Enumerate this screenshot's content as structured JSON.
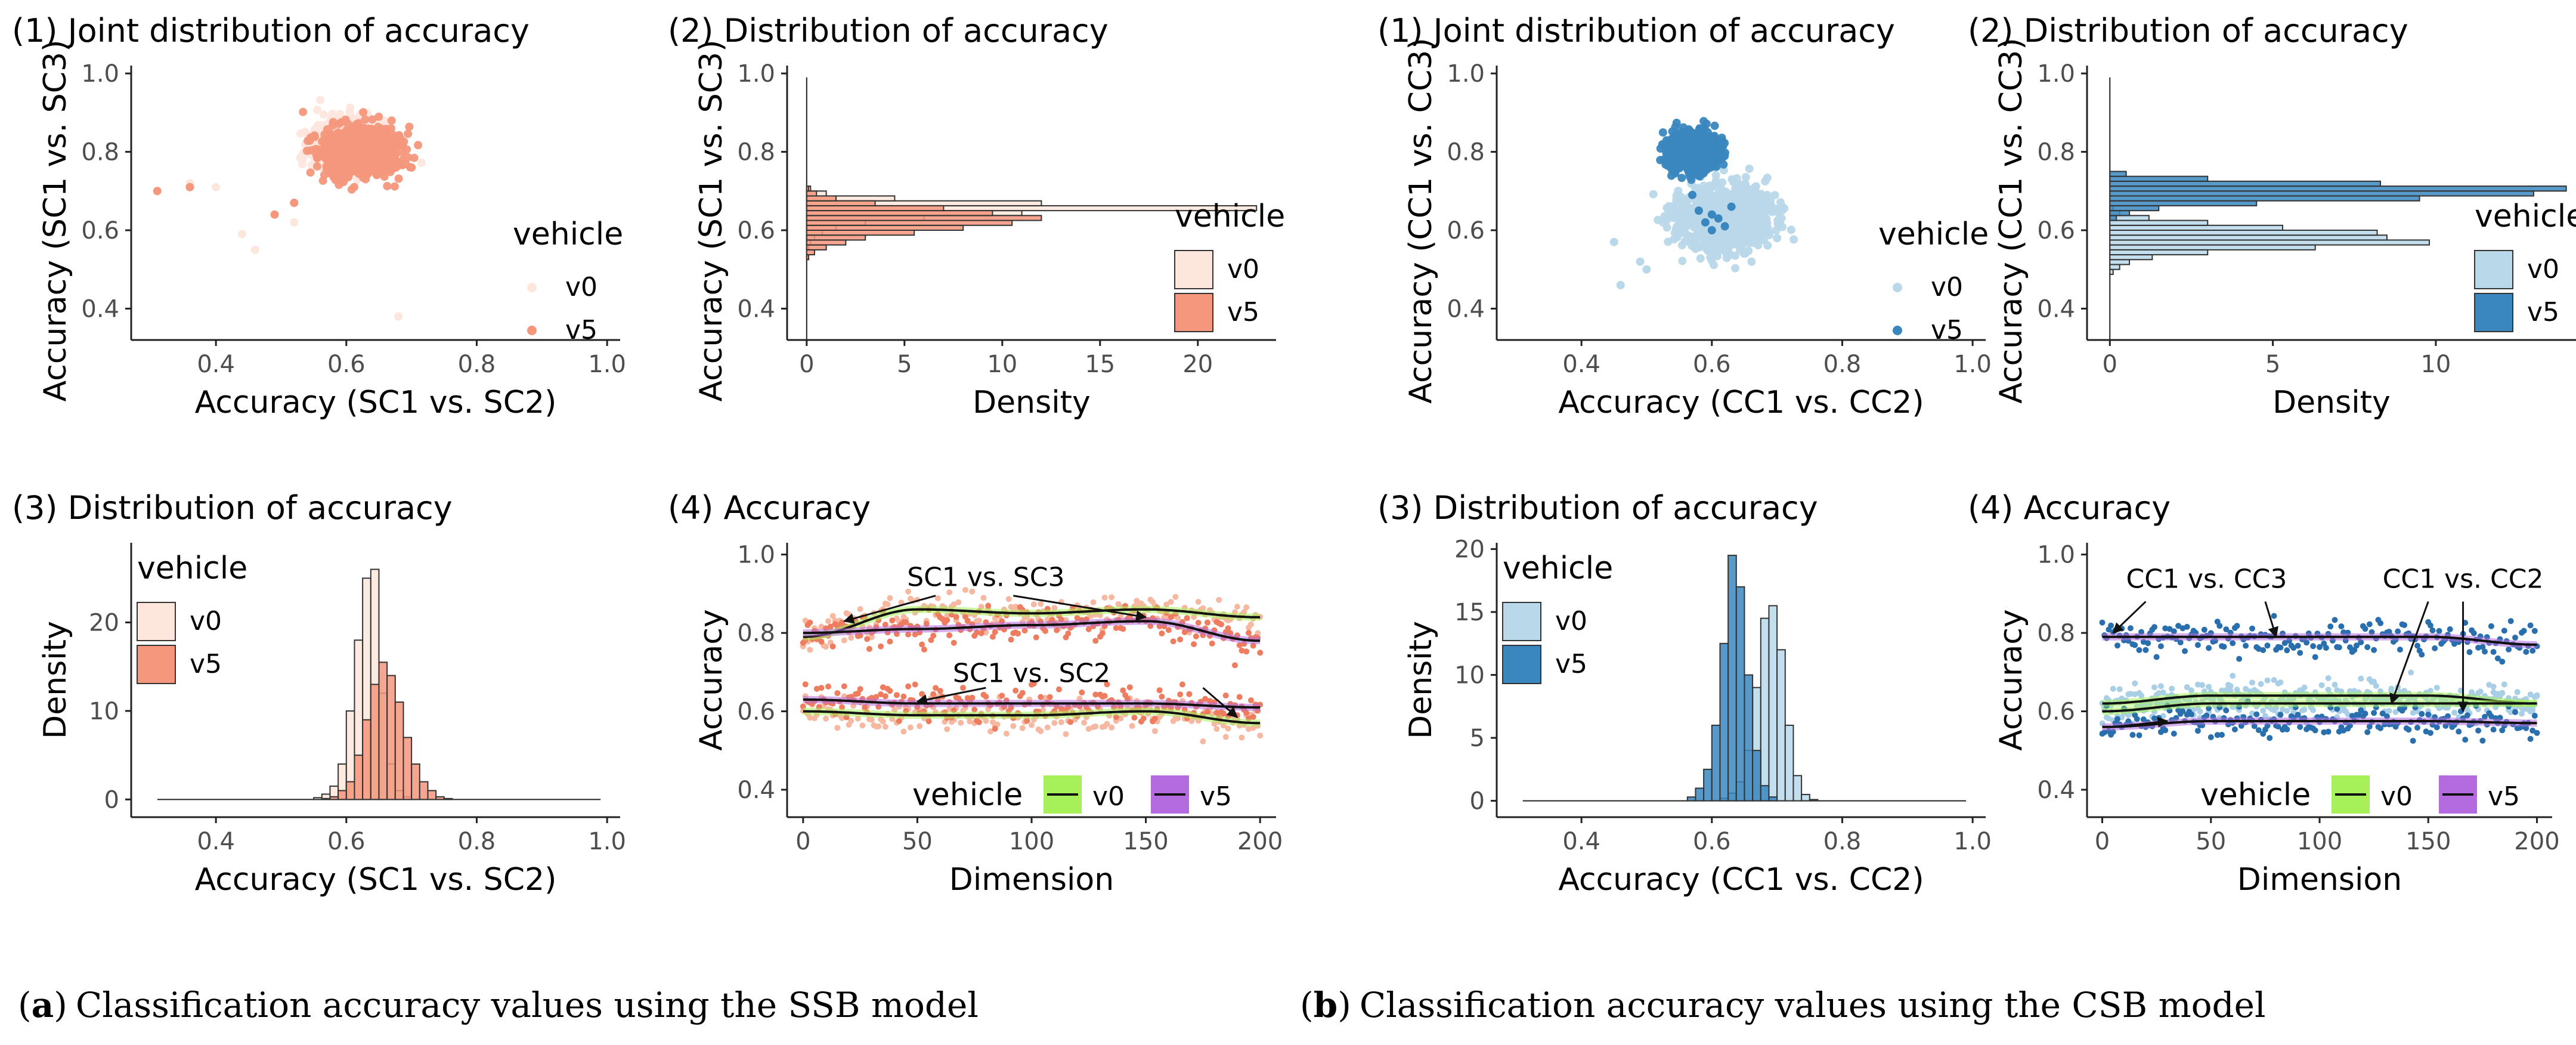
{
  "colors": {
    "ssb_v0": "#fde6dc",
    "ssb_v5": "#f4977c",
    "csb_v0": "#b9d8ea",
    "csb_v5": "#3a87c0",
    "line_v0": "#a6f05a",
    "line_v5": "#b56be0",
    "smooth": "#111111"
  },
  "captions": {
    "a": {
      "tag": "a",
      "text": "Classification accuracy values using the SSB model"
    },
    "b": {
      "tag": "b",
      "text": "Classification accuracy values using the CSB model"
    }
  },
  "chart_data": [
    {
      "id": "a1",
      "type": "scatter",
      "title": "(1) Joint distribution of accuracy",
      "xlabel": "Accuracy (SC1 vs. SC2)",
      "ylabel": "Accuracy (SC1 vs. SC3)",
      "xlim": [
        0.27,
        1.02
      ],
      "ylim": [
        0.32,
        1.02
      ],
      "xticks": [
        "0.4",
        "0.6",
        "0.8",
        "1.0"
      ],
      "yticks": [
        "0.4",
        "0.6",
        "0.8",
        "1.0"
      ],
      "legend": {
        "title": "vehicle",
        "entries": [
          "v0",
          "v5"
        ],
        "position": "right"
      },
      "series": [
        {
          "name": "v0",
          "cluster": {
            "cx": 0.6,
            "cy": 0.82,
            "sx": 0.025,
            "sy": 0.03
          },
          "outliers": [
            [
              0.44,
              0.59
            ],
            [
              0.46,
              0.55
            ],
            [
              0.68,
              0.38
            ],
            [
              0.36,
              0.72
            ],
            [
              0.4,
              0.71
            ],
            [
              0.52,
              0.62
            ]
          ]
        },
        {
          "name": "v5",
          "cluster": {
            "cx": 0.62,
            "cy": 0.8,
            "sx": 0.028,
            "sy": 0.03
          },
          "outliers": [
            [
              0.31,
              0.7
            ],
            [
              0.36,
              0.71
            ],
            [
              0.49,
              0.64
            ],
            [
              0.52,
              0.67
            ],
            [
              0.7,
              0.76
            ]
          ]
        }
      ]
    },
    {
      "id": "a2",
      "type": "histogram-horizontal",
      "title": "(2) Distribution of accuracy",
      "xlabel": "Density",
      "ylabel": "Accuracy (SC1 vs. SC3)",
      "xlim": [
        -1,
        24
      ],
      "ylim": [
        0.32,
        1.02
      ],
      "xticks": [
        "0",
        "5",
        "10",
        "15",
        "20"
      ],
      "yticks": [
        "0.4",
        "0.6",
        "0.8",
        "1.0"
      ],
      "legend": {
        "title": "vehicle",
        "entries": [
          "v0",
          "v5"
        ],
        "position": "right"
      },
      "bin_start": 0.3,
      "bin_width": 0.0125,
      "series": [
        {
          "name": "v0",
          "values": [
            0,
            0,
            0,
            0,
            0,
            0,
            0,
            0,
            0,
            0,
            0,
            0,
            0,
            0,
            0,
            0,
            0,
            0,
            0,
            0,
            0.1,
            0.2,
            0.4,
            0.8,
            1.5,
            3,
            6,
            11,
            23,
            12,
            4.5,
            1,
            0.2,
            0,
            0,
            0,
            0,
            0,
            0,
            0,
            0,
            0,
            0,
            0,
            0,
            0,
            0,
            0,
            0,
            0,
            0,
            0,
            0,
            0,
            0,
            0,
            0
          ]
        },
        {
          "name": "v5",
          "values": [
            0,
            0,
            0,
            0,
            0,
            0,
            0,
            0,
            0,
            0,
            0,
            0,
            0,
            0,
            0,
            0,
            0,
            0,
            0.1,
            0.4,
            1,
            2,
            3,
            5.5,
            8,
            10.5,
            12,
            9.5,
            7,
            3.5,
            1.5,
            0.5,
            0.1,
            0,
            0,
            0,
            0,
            0,
            0,
            0,
            0,
            0,
            0,
            0,
            0,
            0,
            0,
            0,
            0,
            0,
            0,
            0,
            0,
            0,
            0,
            0,
            0
          ]
        }
      ]
    },
    {
      "id": "a3",
      "type": "histogram",
      "title": "(3) Distribution of accuracy",
      "xlabel": "Accuracy (SC1 vs. SC2)",
      "ylabel": "Density",
      "xlim": [
        0.27,
        1.02
      ],
      "ylim": [
        -2,
        29
      ],
      "xticks": [
        "0.4",
        "0.6",
        "0.8",
        "1.0"
      ],
      "yticks": [
        "0",
        "10",
        "20"
      ],
      "legend": {
        "title": "vehicle",
        "entries": [
          "v0",
          "v5"
        ],
        "position": "top-left"
      },
      "bin_start": 0.3,
      "bin_width": 0.0125,
      "series": [
        {
          "name": "v0",
          "values": [
            0,
            0,
            0,
            0,
            0,
            0,
            0,
            0,
            0,
            0,
            0,
            0,
            0,
            0,
            0,
            0,
            0,
            0,
            0,
            0,
            0.2,
            0.6,
            1.5,
            4,
            10,
            18,
            25,
            26,
            12,
            4,
            1,
            0.3,
            0,
            0,
            0,
            0,
            0,
            0,
            0,
            0,
            0,
            0,
            0,
            0,
            0,
            0,
            0,
            0,
            0,
            0,
            0,
            0,
            0,
            0,
            0,
            0
          ]
        },
        {
          "name": "v5",
          "values": [
            0,
            0,
            0,
            0,
            0,
            0,
            0,
            0,
            0,
            0,
            0,
            0,
            0,
            0,
            0,
            0,
            0,
            0,
            0,
            0,
            0,
            0.1,
            0.3,
            1,
            2,
            5,
            9,
            13,
            15.5,
            14,
            11,
            7,
            4,
            2,
            1,
            0.3,
            0.1,
            0,
            0,
            0,
            0,
            0,
            0,
            0,
            0,
            0,
            0,
            0,
            0,
            0,
            0,
            0,
            0,
            0,
            0,
            0
          ]
        }
      ]
    },
    {
      "id": "a4",
      "type": "scatter-line",
      "title": "(4) Accuracy",
      "xlabel": "Dimension",
      "ylabel": "Accuracy",
      "xlim": [
        -7,
        207
      ],
      "ylim": [
        0.33,
        1.03
      ],
      "xticks": [
        "0",
        "50",
        "100",
        "150",
        "200"
      ],
      "yticks": [
        "0.4",
        "0.6",
        "0.8",
        "1.0"
      ],
      "legend": {
        "title": "vehicle",
        "entries": [
          "v0",
          "v5"
        ],
        "position": "bottom"
      },
      "annotations": [
        "SC1 vs. SC3",
        "SC1 vs. SC2"
      ],
      "series": [
        {
          "name": "v0",
          "group": "SC1 vs. SC3",
          "x": [
            0,
            50,
            100,
            150,
            200
          ],
          "y": [
            0.79,
            0.86,
            0.85,
            0.86,
            0.84
          ]
        },
        {
          "name": "v5",
          "group": "SC1 vs. SC3",
          "x": [
            0,
            50,
            100,
            150,
            200
          ],
          "y": [
            0.8,
            0.81,
            0.82,
            0.83,
            0.78
          ]
        },
        {
          "name": "v0",
          "group": "SC1 vs. SC2",
          "x": [
            0,
            50,
            100,
            150,
            200
          ],
          "y": [
            0.6,
            0.59,
            0.59,
            0.6,
            0.57
          ]
        },
        {
          "name": "v5",
          "group": "SC1 vs. SC2",
          "x": [
            0,
            50,
            100,
            150,
            200
          ],
          "y": [
            0.63,
            0.62,
            0.62,
            0.62,
            0.61
          ]
        }
      ]
    },
    {
      "id": "b1",
      "type": "scatter",
      "title": "(1) Joint distribution of accuracy",
      "xlabel": "Accuracy (CC1 vs. CC2)",
      "ylabel": "Accuracy (CC1 vs. CC3)",
      "xlim": [
        0.27,
        1.02
      ],
      "ylim": [
        0.32,
        1.02
      ],
      "xticks": [
        "0.4",
        "0.6",
        "0.8",
        "1.0"
      ],
      "yticks": [
        "0.4",
        "0.6",
        "0.8",
        "1.0"
      ],
      "legend": {
        "title": "vehicle",
        "entries": [
          "v0",
          "v5"
        ],
        "position": "right"
      },
      "series": [
        {
          "name": "v0",
          "cluster": {
            "cx": 0.62,
            "cy": 0.63,
            "sx": 0.035,
            "sy": 0.04
          },
          "outliers": [
            [
              0.46,
              0.46
            ],
            [
              0.49,
              0.52
            ],
            [
              0.45,
              0.57
            ],
            [
              0.5,
              0.5
            ],
            [
              0.7,
              0.58
            ]
          ]
        },
        {
          "name": "v5",
          "cluster": {
            "cx": 0.57,
            "cy": 0.8,
            "sx": 0.018,
            "sy": 0.022
          },
          "outliers": [
            [
              0.59,
              0.62
            ],
            [
              0.6,
              0.6
            ],
            [
              0.61,
              0.63
            ],
            [
              0.58,
              0.65
            ],
            [
              0.62,
              0.61
            ],
            [
              0.6,
              0.64
            ],
            [
              0.63,
              0.66
            ],
            [
              0.57,
              0.69
            ]
          ]
        }
      ]
    },
    {
      "id": "b2",
      "type": "histogram-horizontal",
      "title": "(2) Distribution of accuracy",
      "xlabel": "Density",
      "ylabel": "Accuracy (CC1 vs. CC3)",
      "xlim": [
        -0.7,
        14.3
      ],
      "ylim": [
        0.32,
        1.02
      ],
      "xticks": [
        "0",
        "5",
        "10"
      ],
      "yticks": [
        "0.4",
        "0.6",
        "0.8",
        "1.0"
      ],
      "legend": {
        "title": "vehicle",
        "entries": [
          "v0",
          "v5"
        ],
        "position": "right"
      },
      "bin_start": 0.3,
      "bin_width": 0.0125,
      "series": [
        {
          "name": "v0",
          "values": [
            0,
            0,
            0,
            0,
            0,
            0,
            0,
            0,
            0,
            0,
            0,
            0,
            0,
            0,
            0,
            0.1,
            0.3,
            0.6,
            1.3,
            3,
            6.3,
            9.8,
            8.5,
            8.2,
            5.3,
            3,
            1.2,
            0.3,
            0.1,
            0,
            0,
            0,
            0,
            0,
            0,
            0,
            0,
            0,
            0,
            0,
            0,
            0,
            0,
            0,
            0,
            0,
            0,
            0,
            0,
            0,
            0,
            0,
            0,
            0,
            0,
            0,
            0
          ]
        },
        {
          "name": "v5",
          "values": [
            0,
            0,
            0,
            0,
            0,
            0,
            0,
            0,
            0,
            0,
            0,
            0,
            0,
            0,
            0,
            0,
            0,
            0,
            0,
            0,
            0,
            0,
            0,
            0,
            0,
            0,
            0.2,
            0.6,
            1.5,
            4.5,
            9.5,
            13,
            14,
            8.3,
            3,
            0.5,
            0,
            0,
            0,
            0,
            0,
            0,
            0,
            0,
            0,
            0,
            0,
            0,
            0,
            0,
            0,
            0,
            0,
            0,
            0,
            0,
            0
          ]
        }
      ]
    },
    {
      "id": "b3",
      "type": "histogram",
      "title": "(3) Distribution of accuracy",
      "xlabel": "Accuracy (CC1 vs. CC2)",
      "ylabel": "Density",
      "xlim": [
        0.27,
        1.02
      ],
      "ylim": [
        -1.3,
        20.5
      ],
      "xticks": [
        "0.4",
        "0.6",
        "0.8",
        "1.0"
      ],
      "yticks": [
        "0",
        "5",
        "10",
        "15",
        "20"
      ],
      "legend": {
        "title": "vehicle",
        "entries": [
          "v0",
          "v5"
        ],
        "position": "top-left"
      },
      "bin_start": 0.3,
      "bin_width": 0.0125,
      "series": [
        {
          "name": "v0",
          "values": [
            0,
            0,
            0,
            0,
            0,
            0,
            0,
            0,
            0,
            0,
            0,
            0,
            0,
            0,
            0,
            0,
            0,
            0,
            0,
            0,
            0,
            0,
            0,
            0,
            0,
            0.2,
            0.6,
            1.5,
            4,
            9,
            14.5,
            15.5,
            12,
            6,
            2,
            0.5,
            0.1,
            0,
            0,
            0,
            0,
            0,
            0,
            0,
            0,
            0,
            0,
            0,
            0,
            0,
            0,
            0,
            0,
            0,
            0,
            0
          ]
        },
        {
          "name": "v5",
          "values": [
            0,
            0,
            0,
            0,
            0,
            0,
            0,
            0,
            0,
            0,
            0,
            0,
            0,
            0,
            0,
            0,
            0,
            0,
            0,
            0,
            0,
            0.3,
            1,
            2.5,
            6,
            12.5,
            19.5,
            17,
            10,
            4,
            1.2,
            0.3,
            0,
            0,
            0,
            0,
            0,
            0,
            0,
            0,
            0,
            0,
            0,
            0,
            0,
            0,
            0,
            0,
            0,
            0,
            0,
            0,
            0,
            0,
            0,
            0
          ]
        }
      ]
    },
    {
      "id": "b4",
      "type": "scatter-line",
      "title": "(4) Accuracy",
      "xlabel": "Dimension",
      "ylabel": "Accuracy",
      "xlim": [
        -7,
        207
      ],
      "ylim": [
        0.33,
        1.03
      ],
      "xticks": [
        "0",
        "50",
        "100",
        "150",
        "200"
      ],
      "yticks": [
        "0.4",
        "0.6",
        "0.8",
        "1.0"
      ],
      "legend": {
        "title": "vehicle",
        "entries": [
          "v0",
          "v5"
        ],
        "position": "bottom"
      },
      "annotations": [
        "CC1 vs. CC3",
        "CC1 vs. CC2"
      ],
      "series": [
        {
          "name": "v5",
          "group": "CC1 vs. CC3",
          "x": [
            0,
            50,
            100,
            150,
            200
          ],
          "y": [
            0.79,
            0.79,
            0.79,
            0.79,
            0.77
          ]
        },
        {
          "name": "v0",
          "group": "CC1 vs. CC3",
          "x": [
            0,
            50,
            100,
            150,
            200
          ],
          "y": [
            0.62,
            0.64,
            0.64,
            0.64,
            0.62
          ]
        },
        {
          "name": "v0",
          "group": "CC1 vs. CC2",
          "x": [
            0,
            50,
            100,
            150,
            200
          ],
          "y": [
            0.6,
            0.62,
            0.62,
            0.62,
            0.62
          ]
        },
        {
          "name": "v5",
          "group": "CC1 vs. CC2",
          "x": [
            0,
            50,
            100,
            150,
            200
          ],
          "y": [
            0.56,
            0.575,
            0.575,
            0.575,
            0.57
          ]
        }
      ]
    }
  ]
}
